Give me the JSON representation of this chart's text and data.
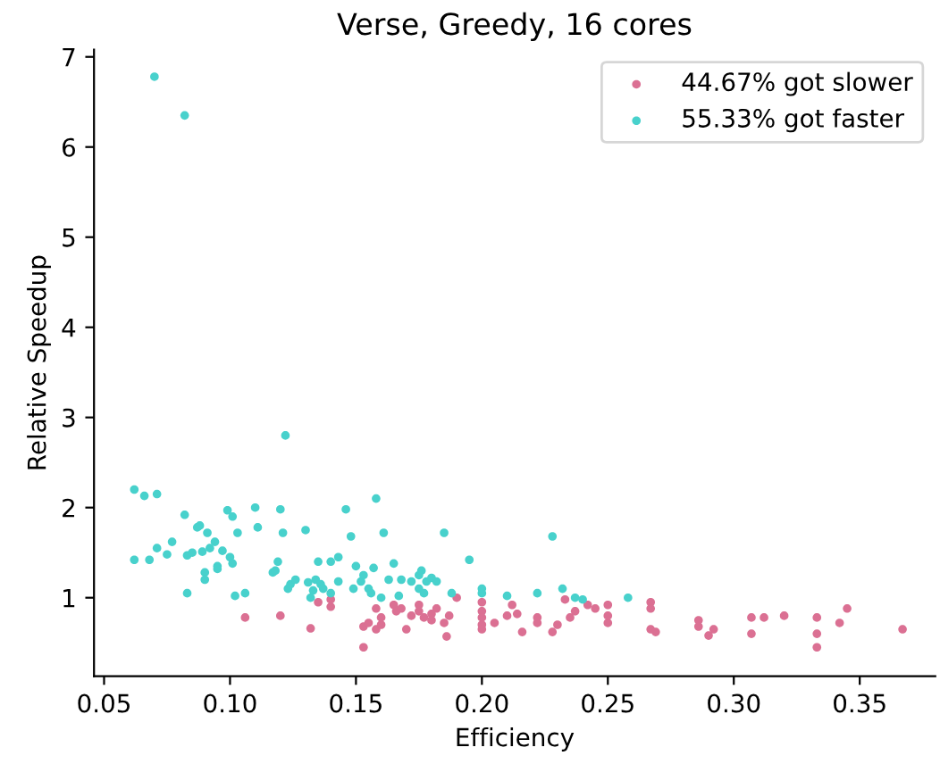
{
  "chart_data": {
    "type": "scatter",
    "title": "Verse, Greedy, 16 cores",
    "xlabel": "Efficiency",
    "ylabel": "Relative Speedup",
    "xlim": [
      0.046,
      0.38
    ],
    "ylim": [
      0.13,
      7.08
    ],
    "xticks": [
      {
        "value": 0.05,
        "label": "0.05"
      },
      {
        "value": 0.1,
        "label": "0.10"
      },
      {
        "value": 0.15,
        "label": "0.15"
      },
      {
        "value": 0.2,
        "label": "0.20"
      },
      {
        "value": 0.25,
        "label": "0.25"
      },
      {
        "value": 0.3,
        "label": "0.30"
      },
      {
        "value": 0.35,
        "label": "0.35"
      }
    ],
    "yticks": [
      1,
      2,
      3,
      4,
      5,
      6,
      7
    ],
    "legend": "top right",
    "grid": false,
    "marker": "circle",
    "series": [
      {
        "name": "44.67% got slower",
        "color": "#db7093",
        "x": [
          0.106,
          0.12,
          0.132,
          0.135,
          0.14,
          0.14,
          0.153,
          0.153,
          0.155,
          0.158,
          0.158,
          0.16,
          0.16,
          0.165,
          0.166,
          0.168,
          0.17,
          0.172,
          0.175,
          0.175,
          0.177,
          0.18,
          0.18,
          0.182,
          0.185,
          0.186,
          0.187,
          0.19,
          0.2,
          0.2,
          0.2,
          0.2,
          0.2,
          0.205,
          0.21,
          0.212,
          0.214,
          0.216,
          0.222,
          0.222,
          0.228,
          0.23,
          0.233,
          0.235,
          0.237,
          0.242,
          0.245,
          0.25,
          0.25,
          0.25,
          0.267,
          0.267,
          0.267,
          0.269,
          0.286,
          0.286,
          0.29,
          0.292,
          0.307,
          0.307,
          0.312,
          0.32,
          0.333,
          0.333,
          0.333,
          0.342,
          0.345,
          0.367
        ],
        "values": [
          0.78,
          0.8,
          0.66,
          0.95,
          0.9,
          0.98,
          0.45,
          0.68,
          0.72,
          0.88,
          0.65,
          0.7,
          0.78,
          0.92,
          0.85,
          0.88,
          0.65,
          0.8,
          0.85,
          0.92,
          0.78,
          0.82,
          0.75,
          0.88,
          0.72,
          0.57,
          0.8,
          1.0,
          0.95,
          0.85,
          0.78,
          0.7,
          0.65,
          0.72,
          0.8,
          0.92,
          0.82,
          0.62,
          0.78,
          0.72,
          0.62,
          0.7,
          0.98,
          0.78,
          0.85,
          0.92,
          0.88,
          0.72,
          0.8,
          0.92,
          0.95,
          0.88,
          0.65,
          0.62,
          0.75,
          0.68,
          0.58,
          0.65,
          0.78,
          0.6,
          0.78,
          0.8,
          0.78,
          0.6,
          0.45,
          0.72,
          0.88,
          0.65
        ]
      },
      {
        "name": "55.33% got faster",
        "color": "#48d1cc",
        "x": [
          0.062,
          0.066,
          0.071,
          0.07,
          0.082,
          0.062,
          0.068,
          0.071,
          0.075,
          0.077,
          0.082,
          0.083,
          0.083,
          0.085,
          0.087,
          0.088,
          0.089,
          0.09,
          0.09,
          0.091,
          0.092,
          0.094,
          0.095,
          0.095,
          0.097,
          0.099,
          0.1,
          0.101,
          0.101,
          0.103,
          0.102,
          0.106,
          0.11,
          0.111,
          0.117,
          0.118,
          0.119,
          0.12,
          0.121,
          0.122,
          0.123,
          0.124,
          0.126,
          0.13,
          0.131,
          0.132,
          0.133,
          0.134,
          0.135,
          0.136,
          0.137,
          0.14,
          0.14,
          0.143,
          0.143,
          0.146,
          0.148,
          0.149,
          0.15,
          0.152,
          0.153,
          0.155,
          0.156,
          0.157,
          0.158,
          0.16,
          0.161,
          0.163,
          0.165,
          0.167,
          0.168,
          0.172,
          0.175,
          0.175,
          0.176,
          0.177,
          0.178,
          0.18,
          0.182,
          0.185,
          0.188,
          0.195,
          0.2,
          0.2,
          0.21,
          0.222,
          0.228,
          0.232,
          0.237,
          0.24,
          0.258
        ],
        "values": [
          2.2,
          2.13,
          2.15,
          6.78,
          6.35,
          1.42,
          1.42,
          1.55,
          1.48,
          1.62,
          1.92,
          1.47,
          1.05,
          1.5,
          1.78,
          1.8,
          1.51,
          1.28,
          1.2,
          1.72,
          1.55,
          1.62,
          1.35,
          1.32,
          1.52,
          1.97,
          1.45,
          1.9,
          1.38,
          1.72,
          1.02,
          1.05,
          2.0,
          1.78,
          1.28,
          1.3,
          1.4,
          1.98,
          1.72,
          2.8,
          1.1,
          1.15,
          1.2,
          1.75,
          1.17,
          1.0,
          1.08,
          1.2,
          1.4,
          1.15,
          1.1,
          1.4,
          1.05,
          1.45,
          1.18,
          1.98,
          1.68,
          1.1,
          1.35,
          1.18,
          1.25,
          1.1,
          1.05,
          1.33,
          2.1,
          1.0,
          1.72,
          1.2,
          1.38,
          1.02,
          1.2,
          1.18,
          1.25,
          1.1,
          1.3,
          1.05,
          1.18,
          1.22,
          1.18,
          1.72,
          1.05,
          1.42,
          1.1,
          1.05,
          1.02,
          1.05,
          1.68,
          1.1,
          1.0,
          0.98,
          1.0
        ]
      }
    ]
  }
}
